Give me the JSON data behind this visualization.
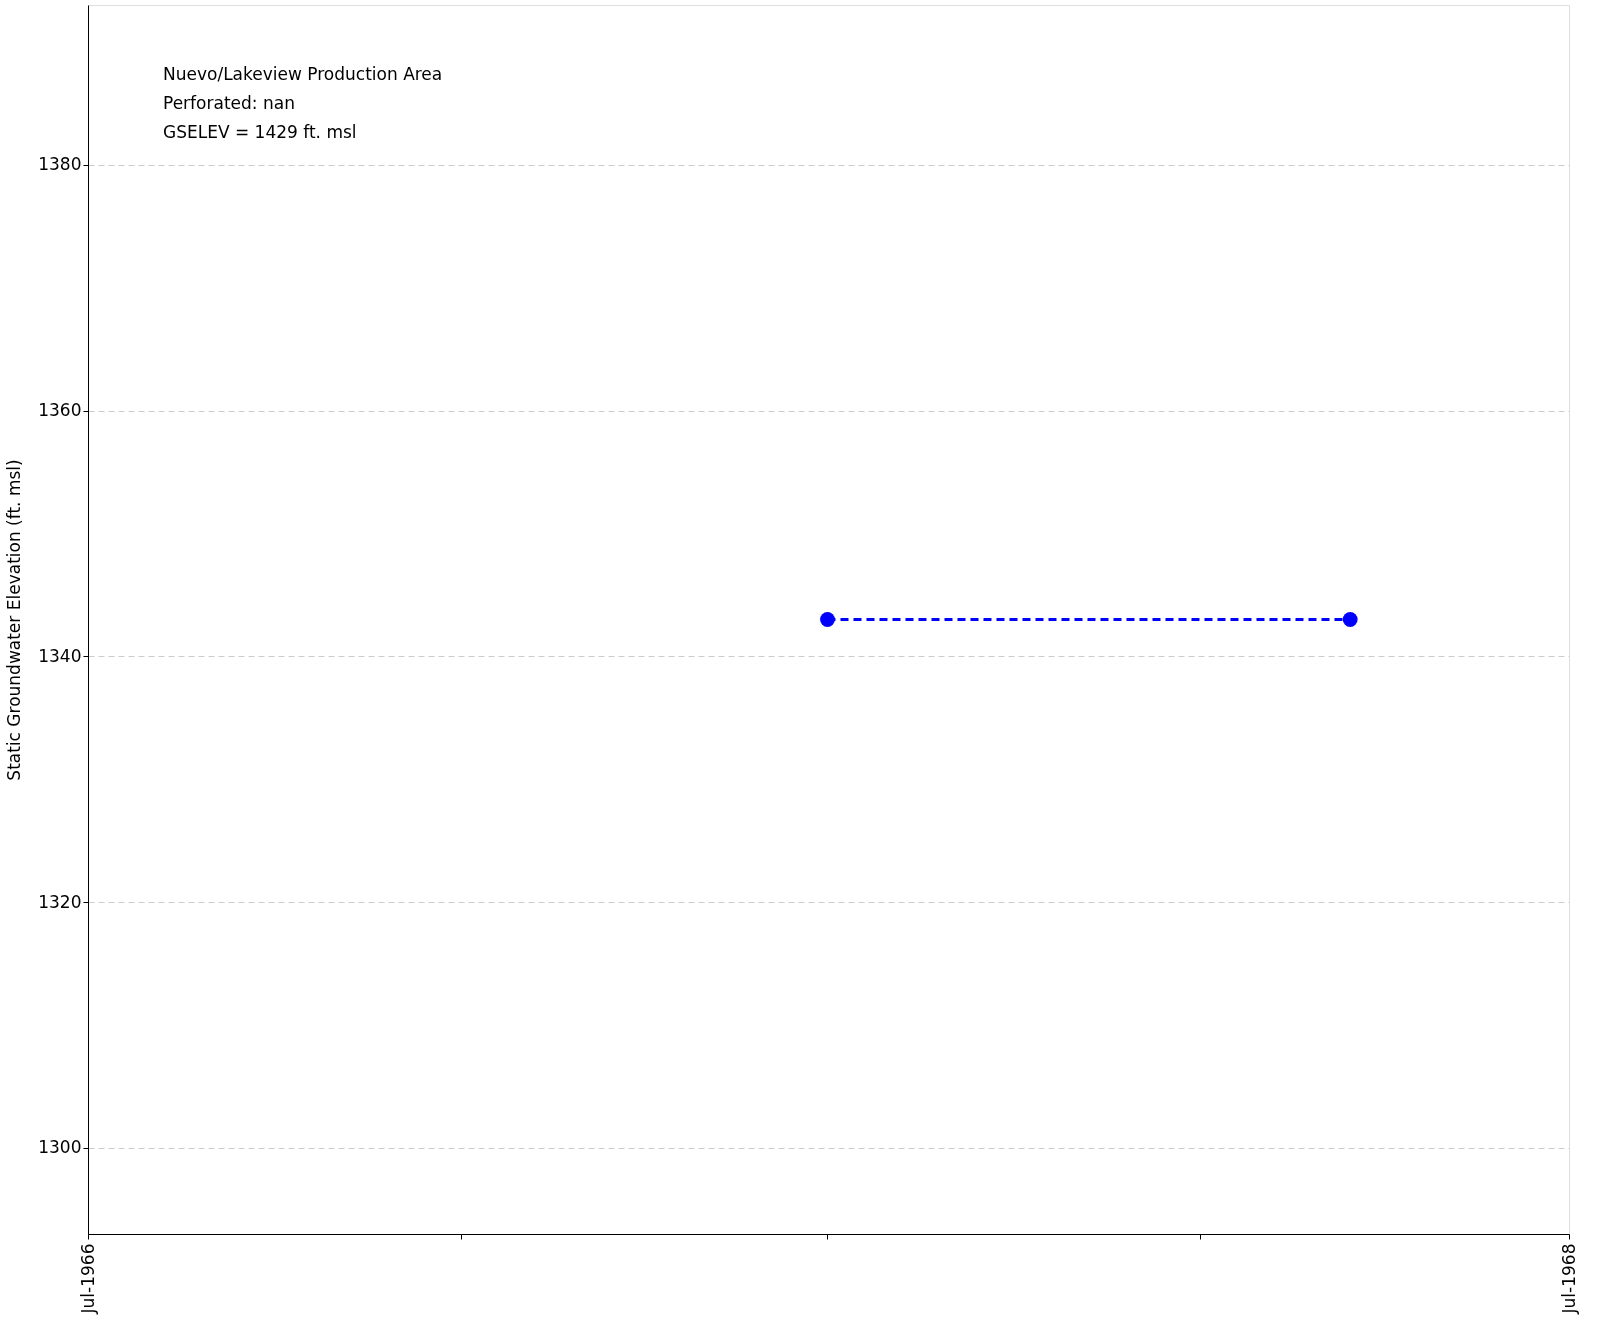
{
  "chart_data": {
    "type": "line",
    "ylabel": "Static Groundwater Elevation (ft. msl)",
    "annotations": [
      "Nuevo/Lakeview Production Area",
      "Perforated: nan",
      "GSELEV = 1429 ft. msl"
    ],
    "x": [
      "1967-07-01",
      "1968-03-15"
    ],
    "series": [
      {
        "color": "#0000ff",
        "values": [
          1343,
          1343
        ]
      }
    ],
    "xlim": [
      "1966-07-01",
      "1968-07-01"
    ],
    "xticks": [
      {
        "value": "1966-07-01",
        "label": "Jul-1966"
      },
      {
        "value": "1967-01-01",
        "label": null
      },
      {
        "value": "1967-07-01",
        "label": null
      },
      {
        "value": "1968-01-01",
        "label": null
      },
      {
        "value": "1968-07-01",
        "label": "Jul-1968"
      }
    ],
    "ylim": [
      1293,
      1393
    ],
    "yticks": [
      1300,
      1320,
      1340,
      1360,
      1380
    ],
    "grid": "y",
    "marker": "circle",
    "line_style": "dashed"
  }
}
